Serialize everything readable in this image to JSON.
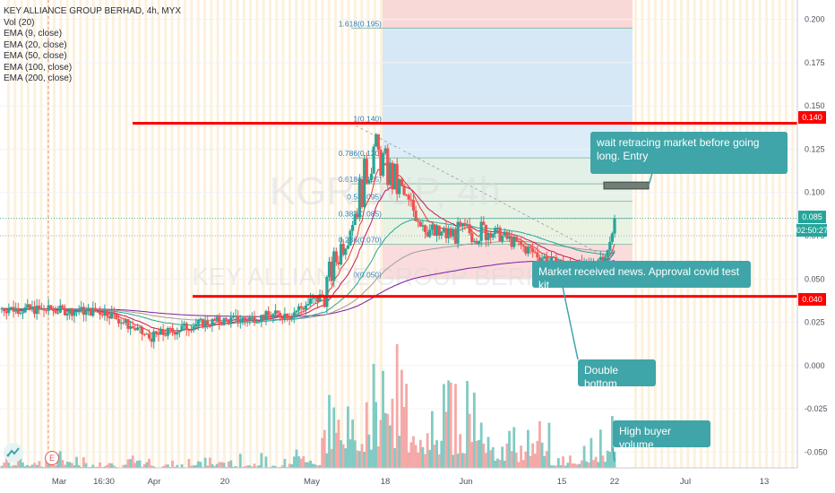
{
  "legend": {
    "symbol_line": "KEY ALLIANCE GROUP BERHAD, 4h, MYX",
    "indicators": [
      "Vol (20)",
      "EMA (9, close)",
      "EMA (20, close)",
      "EMA (50, close)",
      "EMA (100, close)",
      "EMA (200, close)"
    ]
  },
  "watermark": {
    "ticker_line": "KGROUP, 4h",
    "name_line": "KEY ALLIANCE GROUP BERHAD"
  },
  "price_tags": {
    "resistance": "0.140",
    "last": "0.085",
    "countdown": "02:50:27",
    "support": "0.040"
  },
  "badges": {
    "earnings": "E"
  },
  "annotations": {
    "entry": "wait retracing market before going long. Entry",
    "news": "Market received news. Approval covid test kit",
    "double_bottom": "Double bottom",
    "volume": "High buyer volume"
  },
  "colors": {
    "up": "#26a69a",
    "down": "#ef5350",
    "level_line": "#ff0000",
    "callout": "#3fa5a8",
    "ema9": "#e53935",
    "ema20": "#c2185b",
    "ema50": "#26a69a",
    "ema100": "#9e9e9e",
    "ema200": "#7b1fa2"
  },
  "chart_data": {
    "type": "candlestick",
    "title": "KEY ALLIANCE GROUP BERHAD, 4h, MYX",
    "ylim": [
      -0.055,
      0.205
    ],
    "y_ticks": [
      "0.200",
      "0.175",
      "0.150",
      "0.125",
      "0.100",
      "0.075",
      "0.050",
      "0.025",
      "0.000",
      "-0.025",
      "-0.050"
    ],
    "x_ticks": [
      "Mar",
      "16:30",
      "Apr",
      "20",
      "May",
      "18",
      "Jun",
      "15",
      "22",
      "Jul",
      "13"
    ],
    "fibonacci": [
      {
        "label": "1.618(0.195)",
        "value": 0.195
      },
      {
        "label": "1(0.140)",
        "value": 0.14
      },
      {
        "label": "0.786(0.120)",
        "value": 0.12
      },
      {
        "label": "0.618(0.105)",
        "value": 0.105
      },
      {
        "label": "0.5(0.095)",
        "value": 0.095
      },
      {
        "label": "0.382(0.085)",
        "value": 0.085
      },
      {
        "label": "0.236(0.070)",
        "value": 0.07
      },
      {
        "label": "0(0.050)",
        "value": 0.05
      }
    ],
    "levels": [
      {
        "name": "resistance",
        "value": 0.14
      },
      {
        "name": "support",
        "value": 0.04
      }
    ],
    "last_price": 0.085,
    "segments": [
      {
        "bars": 45,
        "start": 0.033,
        "end": 0.031,
        "noise": 0.003,
        "vol": 0.7
      },
      {
        "bars": 18,
        "start": 0.031,
        "end": 0.016,
        "noise": 0.003,
        "vol": 0.5
      },
      {
        "bars": 20,
        "start": 0.016,
        "end": 0.024,
        "noise": 0.003,
        "vol": 0.5
      },
      {
        "bars": 40,
        "start": 0.024,
        "end": 0.03,
        "noise": 0.003,
        "vol": 0.6
      },
      {
        "bars": 14,
        "start": 0.03,
        "end": 0.04,
        "noise": 0.004,
        "vol": 1.2
      },
      {
        "bars": 14,
        "start": 0.04,
        "end": 0.09,
        "noise": 0.01,
        "vol": 3
      },
      {
        "bars": 8,
        "start": 0.09,
        "end": 0.125,
        "noise": 0.012,
        "vol": 5
      },
      {
        "bars": 14,
        "start": 0.125,
        "end": 0.095,
        "noise": 0.012,
        "vol": 6
      },
      {
        "bars": 12,
        "start": 0.095,
        "end": 0.075,
        "noise": 0.007,
        "vol": 4
      },
      {
        "bars": 24,
        "start": 0.075,
        "end": 0.078,
        "noise": 0.007,
        "vol": 4
      },
      {
        "bars": 26,
        "start": 0.078,
        "end": 0.06,
        "noise": 0.004,
        "vol": 2
      },
      {
        "bars": 14,
        "start": 0.06,
        "end": 0.057,
        "noise": 0.003,
        "vol": 1
      },
      {
        "bars": 10,
        "start": 0.057,
        "end": 0.065,
        "noise": 0.003,
        "vol": 1.4
      },
      {
        "bars": 4,
        "start": 0.065,
        "end": 0.085,
        "noise": 0.005,
        "vol": 3
      }
    ]
  }
}
